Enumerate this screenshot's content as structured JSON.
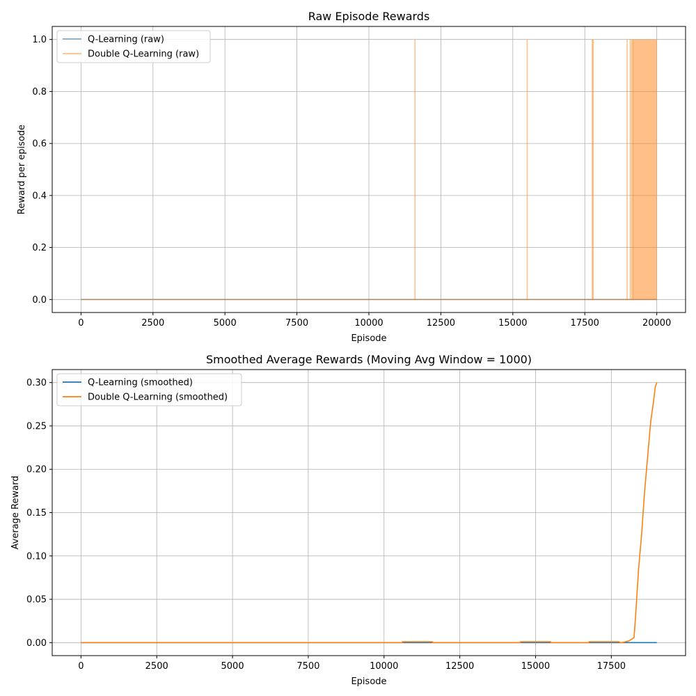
{
  "chart_data": [
    {
      "type": "line",
      "title": "Raw Episode Rewards",
      "xlabel": "Episode",
      "ylabel": "Reward per episode",
      "xlim": [
        -1000,
        21000
      ],
      "ylim": [
        -0.05,
        1.05
      ],
      "xticks": [
        0,
        2500,
        5000,
        7500,
        10000,
        12500,
        15000,
        17500,
        20000
      ],
      "yticks": [
        0.0,
        0.2,
        0.4,
        0.6,
        0.8,
        1.0
      ],
      "xtick_labels": [
        "0",
        "2500",
        "5000",
        "7500",
        "10000",
        "12500",
        "15000",
        "17500",
        "20000"
      ],
      "ytick_labels": [
        "0.0",
        "0.2",
        "0.4",
        "0.6",
        "0.8",
        "1.0"
      ],
      "grid": true,
      "legend_position": "top-left",
      "series": [
        {
          "name": "Q-Learning (raw)",
          "color": "#1f77b4",
          "alpha": 0.6,
          "x": [
            0,
            20000
          ],
          "y": [
            0,
            0
          ]
        },
        {
          "name": "Double Q-Learning (raw)",
          "color": "#ff7f0e",
          "alpha": 0.5,
          "spikes": [
            11600,
            15500,
            17760,
            17790,
            18970,
            19080,
            19130,
            19170
          ],
          "dense_region": [
            19170,
            20000
          ],
          "x": [
            0,
            20000
          ],
          "y": [
            0,
            0
          ]
        }
      ]
    },
    {
      "type": "line",
      "title": "Smoothed Average Rewards (Moving Avg Window = 1000)",
      "xlabel": "Episode",
      "ylabel": "Average Reward",
      "xlim": [
        -950,
        19950
      ],
      "ylim": [
        -0.015,
        0.315
      ],
      "xticks": [
        0,
        2500,
        5000,
        7500,
        10000,
        12500,
        15000,
        17500
      ],
      "yticks": [
        0.0,
        0.05,
        0.1,
        0.15,
        0.2,
        0.25,
        0.3
      ],
      "xtick_labels": [
        "0",
        "2500",
        "5000",
        "7500",
        "10000",
        "12500",
        "15000",
        "17500"
      ],
      "ytick_labels": [
        "0.00",
        "0.05",
        "0.10",
        "0.15",
        "0.20",
        "0.25",
        "0.30"
      ],
      "grid": true,
      "legend_position": "top-left",
      "series": [
        {
          "name": "Q-Learning (smoothed)",
          "color": "#1f77b4",
          "x": [
            0,
            19000
          ],
          "y": [
            0,
            0
          ]
        },
        {
          "name": "Double Q-Learning (smoothed)",
          "color": "#ff7f0e",
          "x": [
            0,
            10600,
            10601,
            11600,
            11601,
            14500,
            14501,
            15500,
            15501,
            16760,
            16761,
            17760,
            17790,
            17850,
            17970,
            18080,
            18130,
            18170,
            18250,
            18300,
            18400,
            18500,
            18600,
            18700,
            18800,
            18900,
            18950,
            19000
          ],
          "y": [
            0,
            0,
            0.001,
            0.001,
            0,
            0,
            0.001,
            0.001,
            0,
            0,
            0.001,
            0.001,
            0.0,
            0.0,
            0.001,
            0.002,
            0.003,
            0.004,
            0.006,
            0.03,
            0.085,
            0.125,
            0.175,
            0.215,
            0.255,
            0.28,
            0.295,
            0.3
          ]
        }
      ]
    }
  ]
}
